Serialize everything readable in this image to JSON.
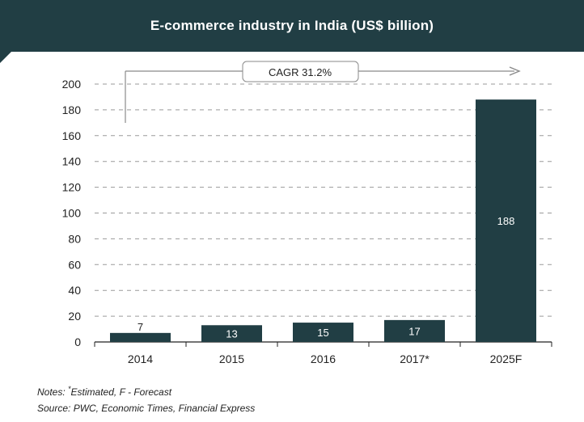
{
  "header": {
    "title": "E-commerce industry in India (US$ billion)"
  },
  "chart_data": {
    "type": "bar",
    "title": "E-commerce industry in India (US$ billion)",
    "categories": [
      "2014",
      "2015",
      "2016",
      "2017*",
      "2025F"
    ],
    "values": [
      7,
      13,
      15,
      17,
      188
    ],
    "data_labels": [
      "7",
      "13",
      "15",
      "17",
      "188"
    ],
    "ylim": [
      0,
      200
    ],
    "yticks": [
      "0",
      "20",
      "40",
      "60",
      "80",
      "100",
      "120",
      "140",
      "160",
      "180",
      "200"
    ],
    "xlabel": "",
    "ylabel": "",
    "grid": true,
    "annotation": "CAGR 31.2%",
    "colors": {
      "bar": "#213e44",
      "header": "#213e44",
      "label_on_bar": "#ffffff"
    }
  },
  "footer": {
    "notes_prefix": "Notes:",
    "notes_mark": "*",
    "notes_text": "Estimated, F - Forecast",
    "source": "Source: PWC, Economic Times, Financial Express"
  }
}
